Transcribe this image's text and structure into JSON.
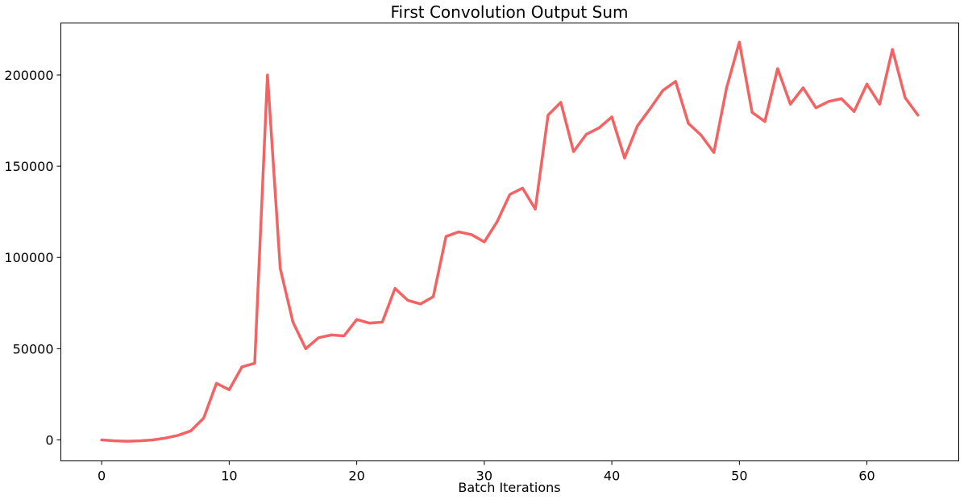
{
  "chart_data": {
    "type": "line",
    "title": "First Convolution Output Sum",
    "xlabel": "Batch Iterations",
    "ylabel": "",
    "xlim": [
      -3.2,
      67.2
    ],
    "ylim": [
      -11500,
      228500
    ],
    "xticks": [
      0,
      10,
      20,
      30,
      40,
      50,
      60
    ],
    "yticks": [
      0,
      50000,
      100000,
      150000,
      200000
    ],
    "grid": false,
    "series": [
      {
        "color": "#f46363",
        "x": [
          0,
          1,
          2,
          3,
          4,
          5,
          6,
          7,
          8,
          9,
          10,
          11,
          12,
          13,
          14,
          15,
          16,
          17,
          18,
          19,
          20,
          21,
          22,
          23,
          24,
          25,
          26,
          27,
          28,
          29,
          30,
          31,
          32,
          33,
          34,
          35,
          36,
          37,
          38,
          39,
          40,
          41,
          42,
          43,
          44,
          45,
          46,
          47,
          48,
          49,
          50,
          51,
          52,
          53,
          54,
          55,
          56,
          57,
          58,
          59,
          60,
          61,
          62,
          63,
          64
        ],
        "y": [
          0,
          -500,
          -700,
          -500,
          0,
          1000,
          2500,
          5000,
          12000,
          31000,
          27500,
          40000,
          42000,
          200000,
          94000,
          64500,
          50000,
          56000,
          57500,
          57000,
          66000,
          64000,
          64500,
          83000,
          76500,
          74500,
          78500,
          111500,
          114000,
          112500,
          108500,
          119500,
          134500,
          138000,
          126500,
          178000,
          185000,
          158000,
          167500,
          171000,
          177000,
          154500,
          172000,
          181500,
          191500,
          196500,
          173500,
          167000,
          157500,
          193000,
          218000,
          179500,
          174500,
          203500,
          184000,
          193000,
          182000,
          185500,
          187000,
          180000,
          195000,
          184000,
          214000,
          187500,
          178000
        ]
      }
    ]
  }
}
